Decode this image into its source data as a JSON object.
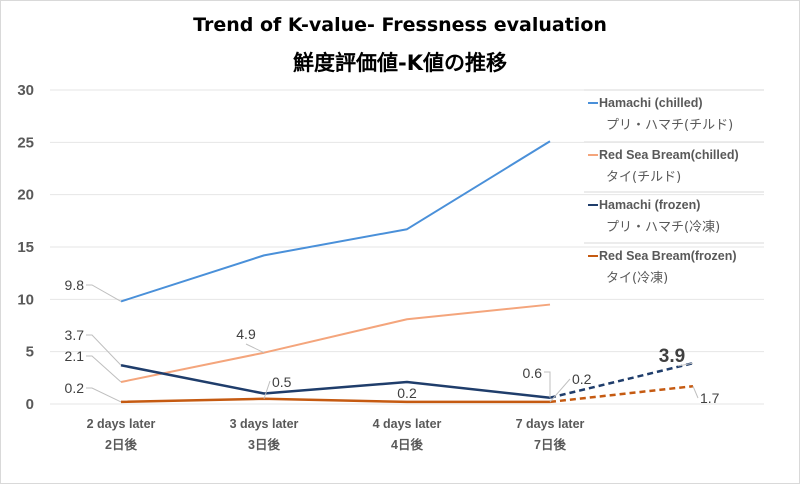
{
  "chart_data": {
    "type": "line",
    "title": "Trend of K-value- Fressness evaluation",
    "subtitle": "鮮度評価値-K値の推移",
    "xlabel": "",
    "ylabel": "",
    "ylim": [
      0,
      30
    ],
    "yticks": [
      "0",
      "5",
      "10",
      "15",
      "20",
      "25",
      "30"
    ],
    "grid": true,
    "legend_position": "right",
    "categories": [
      {
        "en": "2 days later",
        "jp": "2日後"
      },
      {
        "en": "3 days later",
        "jp": "3日後"
      },
      {
        "en": "4 days later",
        "jp": "4日後"
      },
      {
        "en": "7 days later",
        "jp": "7日後"
      },
      {
        "en": "",
        "jp": ""
      }
    ],
    "series": [
      {
        "name": "Hamachi (chilled)",
        "name_jp": "プリ・ハマチ(チルド)",
        "color": "#4a90d9",
        "values": [
          9.8,
          14.2,
          16.7,
          25.1,
          null
        ],
        "projection": [],
        "labels": [
          "9.8",
          null,
          null,
          null,
          null
        ]
      },
      {
        "name": "Red Sea Bream(chilled)",
        "name_jp": "タイ(チルド)",
        "color": "#f4a57c",
        "values": [
          2.1,
          4.9,
          8.1,
          9.5,
          null
        ],
        "projection": [],
        "labels": [
          "2.1",
          "4.9",
          null,
          null,
          null
        ]
      },
      {
        "name": "Hamachi (frozen)",
        "name_jp": "プリ・ハマチ(冷凍)",
        "color": "#1f3d6b",
        "values": [
          3.7,
          1.0,
          2.1,
          0.6,
          null
        ],
        "projection": [
          0.6,
          3.9
        ],
        "labels": [
          "3.7",
          null,
          null,
          "0.6",
          "3.9"
        ]
      },
      {
        "name": "Red Sea Bream(frozen)",
        "name_jp": "タイ(冷凍)",
        "color": "#c55a11",
        "values": [
          0.2,
          0.5,
          0.2,
          0.2,
          null
        ],
        "projection": [
          0.2,
          1.7
        ],
        "labels": [
          "0.2",
          "0.5",
          "0.2",
          "0.2",
          "1.7"
        ]
      }
    ]
  }
}
